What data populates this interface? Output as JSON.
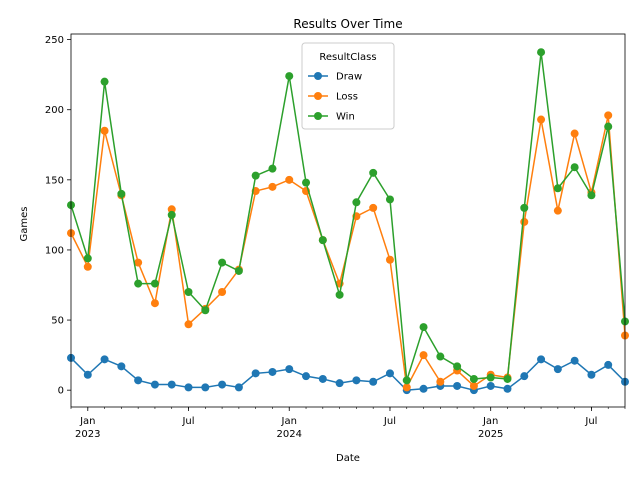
{
  "chart_data": {
    "type": "line",
    "title": "Results Over Time",
    "xlabel": "Date",
    "ylabel": "Games",
    "ylim": [
      -12,
      254
    ],
    "yticks": [
      0,
      50,
      100,
      150,
      200,
      250
    ],
    "x": [
      "2022-12",
      "2023-01",
      "2023-02",
      "2023-03",
      "2023-04",
      "2023-05",
      "2023-06",
      "2023-07",
      "2023-08",
      "2023-09",
      "2023-10",
      "2023-11",
      "2023-12",
      "2024-01",
      "2024-02",
      "2024-03",
      "2024-04",
      "2024-05",
      "2024-06",
      "2024-07",
      "2024-08",
      "2024-09",
      "2024-10",
      "2024-11",
      "2024-12",
      "2025-01",
      "2025-02",
      "2025-03",
      "2025-04",
      "2025-05",
      "2025-06",
      "2025-07",
      "2025-08",
      "2025-09"
    ],
    "x_tick_labels": [
      {
        "x": "2023-01",
        "line1": "Jan",
        "line2": "2023"
      },
      {
        "x": "2023-07",
        "line1": "Jul",
        "line2": ""
      },
      {
        "x": "2024-01",
        "line1": "Jan",
        "line2": "2024"
      },
      {
        "x": "2024-07",
        "line1": "Jul",
        "line2": ""
      },
      {
        "x": "2025-01",
        "line1": "Jan",
        "line2": "2025"
      },
      {
        "x": "2025-07",
        "line1": "Jul",
        "line2": ""
      }
    ],
    "series": [
      {
        "name": "Draw",
        "color": "#1f77b4",
        "values": [
          23,
          11,
          22,
          17,
          7,
          4,
          4,
          2,
          2,
          4,
          2,
          12,
          13,
          15,
          10,
          8,
          5,
          7,
          6,
          12,
          0,
          1,
          3,
          3,
          0,
          3,
          1,
          10,
          22,
          15,
          21,
          11,
          18,
          6
        ]
      },
      {
        "name": "Loss",
        "color": "#ff7f0e",
        "values": [
          112,
          88,
          185,
          139,
          91,
          62,
          129,
          47,
          58,
          70,
          86,
          142,
          145,
          150,
          142,
          107,
          76,
          124,
          130,
          93,
          2,
          25,
          6,
          14,
          3,
          11,
          9,
          120,
          193,
          128,
          183,
          141,
          196,
          39
        ]
      },
      {
        "name": "Win",
        "color": "#2ca02c",
        "values": [
          132,
          94,
          220,
          140,
          76,
          76,
          125,
          70,
          57,
          91,
          85,
          153,
          158,
          224,
          148,
          107,
          68,
          134,
          155,
          136,
          7,
          45,
          24,
          17,
          8,
          9,
          8,
          130,
          241,
          144,
          159,
          139,
          188,
          49
        ]
      }
    ],
    "legend": {
      "title": "ResultClass",
      "placement": "upper center"
    },
    "grid": false
  }
}
